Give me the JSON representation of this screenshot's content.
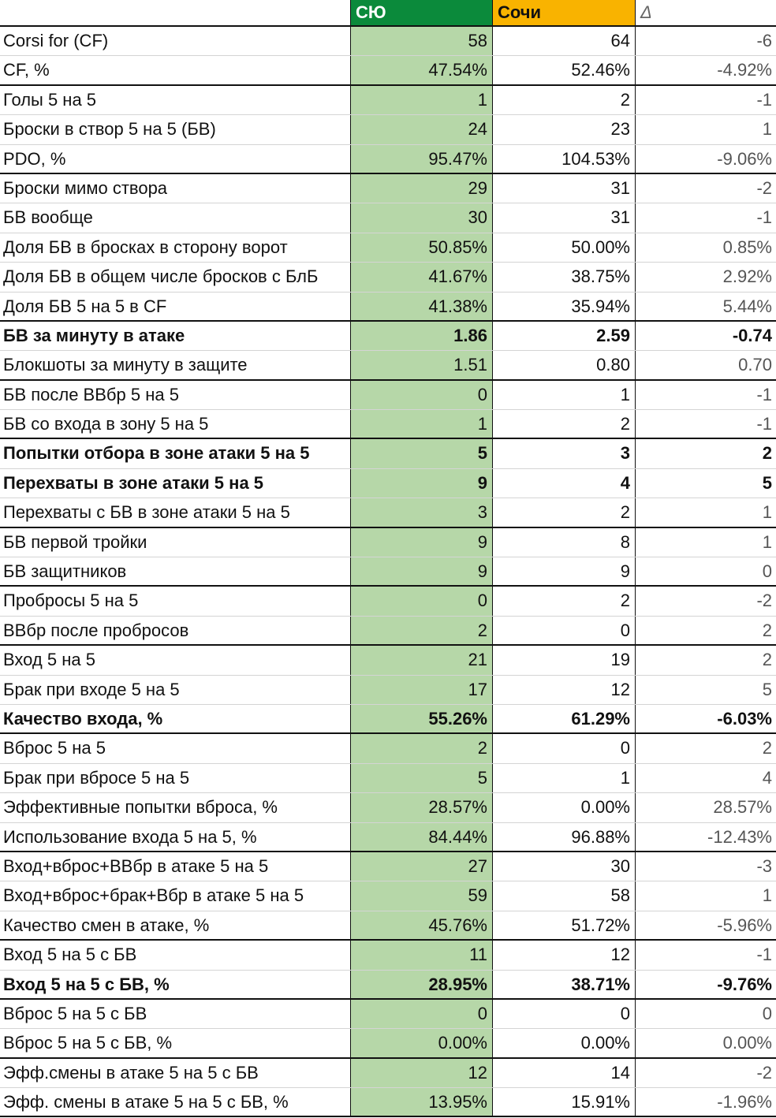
{
  "header": {
    "columns": [
      "СЮ",
      "Сочи",
      "Δ"
    ]
  },
  "table": {
    "groups": [
      {
        "rows": [
          {
            "label": "Corsi for (CF)",
            "values": [
              "58",
              "64",
              "-6"
            ]
          },
          {
            "label": "CF, %",
            "values": [
              "47.54%",
              "52.46%",
              "-4.92%"
            ]
          }
        ]
      },
      {
        "rows": [
          {
            "label": "Голы 5 на 5",
            "values": [
              "1",
              "2",
              "-1"
            ]
          },
          {
            "label": "Броски в створ 5 на 5 (БВ)",
            "values": [
              "24",
              "23",
              "1"
            ]
          },
          {
            "label": "PDO, %",
            "values": [
              "95.47%",
              "104.53%",
              "-9.06%"
            ]
          }
        ]
      },
      {
        "rows": [
          {
            "label": "Броски мимо створа",
            "values": [
              "29",
              "31",
              "-2"
            ]
          },
          {
            "label": "БВ вообще",
            "values": [
              "30",
              "31",
              "-1"
            ]
          },
          {
            "label": "Доля БВ в бросках в сторону ворот",
            "values": [
              "50.85%",
              "50.00%",
              "0.85%"
            ]
          },
          {
            "label": "Доля БВ в общем числе бросков с БлБ",
            "values": [
              "41.67%",
              "38.75%",
              "2.92%"
            ]
          },
          {
            "label": "Доля БВ 5 на 5 в CF",
            "values": [
              "41.38%",
              "35.94%",
              "5.44%"
            ]
          }
        ]
      },
      {
        "rows": [
          {
            "label": "БВ за минуту в атаке",
            "values": [
              "1.86",
              "2.59",
              "-0.74"
            ],
            "bold": true
          },
          {
            "label": "Блокшоты за минуту в защите",
            "values": [
              "1.51",
              "0.80",
              "0.70"
            ]
          }
        ]
      },
      {
        "rows": [
          {
            "label": "БВ после ВВбр 5 на 5",
            "values": [
              "0",
              "1",
              "-1"
            ]
          },
          {
            "label": "БВ со входа в зону 5 на 5",
            "values": [
              "1",
              "2",
              "-1"
            ]
          }
        ]
      },
      {
        "rows": [
          {
            "label": "Попытки отбора в зоне атаки 5 на 5",
            "values": [
              "5",
              "3",
              "2"
            ],
            "bold": true
          },
          {
            "label": "Перехваты в зоне атаки 5 на 5",
            "values": [
              "9",
              "4",
              "5"
            ],
            "bold": true
          },
          {
            "label": "Перехваты с БВ в зоне атаки 5 на 5",
            "values": [
              "3",
              "2",
              "1"
            ]
          }
        ]
      },
      {
        "rows": [
          {
            "label": "БВ первой тройки",
            "values": [
              "9",
              "8",
              "1"
            ]
          },
          {
            "label": "БВ защитников",
            "values": [
              "9",
              "9",
              "0"
            ]
          }
        ]
      },
      {
        "rows": [
          {
            "label": "Пробросы 5 на 5",
            "values": [
              "0",
              "2",
              "-2"
            ]
          },
          {
            "label": "ВВбр после пробросов",
            "values": [
              "2",
              "0",
              "2"
            ]
          }
        ]
      },
      {
        "rows": [
          {
            "label": "Вход 5 на 5",
            "values": [
              "21",
              "19",
              "2"
            ]
          },
          {
            "label": "Брак при входе 5 на 5",
            "values": [
              "17",
              "12",
              "5"
            ]
          },
          {
            "label": "Качество входа, %",
            "values": [
              "55.26%",
              "61.29%",
              "-6.03%"
            ],
            "bold": true
          }
        ]
      },
      {
        "rows": [
          {
            "label": "Вброс 5 на 5",
            "values": [
              "2",
              "0",
              "2"
            ]
          },
          {
            "label": "Брак при вбросе 5 на 5",
            "values": [
              "5",
              "1",
              "4"
            ]
          },
          {
            "label": "Эффективные попытки вброса, %",
            "values": [
              "28.57%",
              "0.00%",
              "28.57%"
            ]
          },
          {
            "label": "Использование входа 5 на 5, %",
            "values": [
              "84.44%",
              "96.88%",
              "-12.43%"
            ]
          }
        ]
      },
      {
        "rows": [
          {
            "label": "Вход+вброс+ВВбр в атаке 5 на 5",
            "values": [
              "27",
              "30",
              "-3"
            ]
          },
          {
            "label": "Вход+вброс+брак+Вбр в атаке 5 на 5",
            "values": [
              "59",
              "58",
              "1"
            ]
          },
          {
            "label": "Качество смен в атаке, %",
            "values": [
              "45.76%",
              "51.72%",
              "-5.96%"
            ]
          }
        ]
      },
      {
        "rows": [
          {
            "label": "Вход 5 на 5 с БВ",
            "values": [
              "11",
              "12",
              "-1"
            ]
          },
          {
            "label": "Вход 5 на 5 с БВ, %",
            "values": [
              "28.95%",
              "38.71%",
              "-9.76%"
            ],
            "bold": true
          }
        ]
      },
      {
        "rows": [
          {
            "label": "Вброс 5 на 5 с БВ",
            "values": [
              "0",
              "0",
              "0"
            ]
          },
          {
            "label": "Вброс 5 на 5 с БВ, %",
            "values": [
              "0.00%",
              "0.00%",
              "0.00%"
            ]
          }
        ]
      },
      {
        "rows": [
          {
            "label": "Эфф.смены в атаке 5 на 5 с БВ",
            "values": [
              "12",
              "14",
              "-2"
            ]
          },
          {
            "label": "Эфф. смены в атаке 5 на 5 с БВ, %",
            "values": [
              "13.95%",
              "15.91%",
              "-1.96%"
            ]
          }
        ]
      }
    ]
  }
}
